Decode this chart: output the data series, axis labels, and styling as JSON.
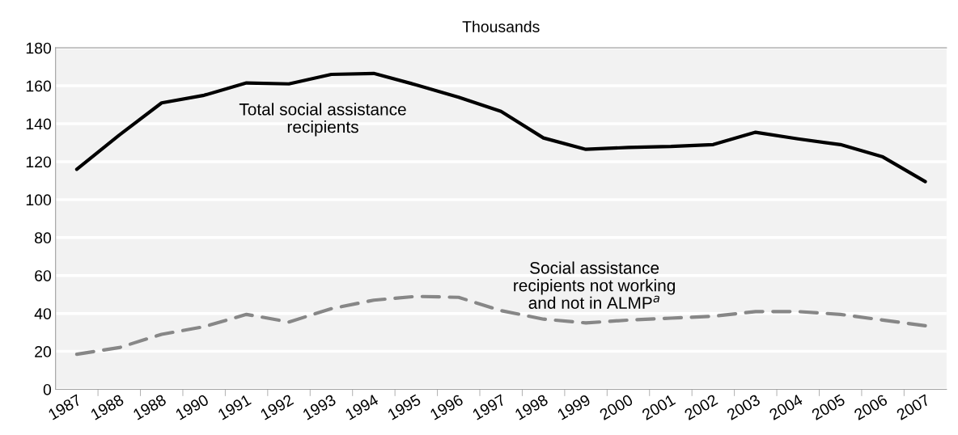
{
  "chart_data": {
    "type": "line",
    "ylabel": "Thousands",
    "categories": [
      "1987",
      "1988",
      "1988",
      "1990",
      "1991",
      "1992",
      "1993",
      "1994",
      "1995",
      "1996",
      "1997",
      "1998",
      "1999",
      "2000",
      "2001",
      "2002",
      "2003",
      "2004",
      "2005",
      "2006",
      "2007"
    ],
    "series": [
      {
        "name": "Total social assistance recipients",
        "color": "#000000",
        "line_style": "solid",
        "values": [
          116,
          134,
          151,
          155,
          161.5,
          161,
          166,
          166.5,
          160.5,
          154,
          146.5,
          132.5,
          126.5,
          127.5,
          128,
          129,
          135.5,
          132,
          129,
          122.5,
          109.5
        ]
      },
      {
        "name": "Social assistance recipients not working and not in ALMP$^{a}$",
        "color": "#878787",
        "line_style": "dashed",
        "values": [
          18.5,
          22,
          29,
          33,
          39.5,
          35.5,
          42.5,
          47,
          49,
          48.5,
          41.5,
          37,
          35,
          36.5,
          37.5,
          38.5,
          41,
          41,
          39.5,
          36.5,
          33.5
        ]
      }
    ],
    "ylim": [
      0,
      180
    ],
    "yticks": [
      0,
      20,
      40,
      60,
      80,
      100,
      120,
      140,
      160,
      180
    ],
    "grid": "y",
    "legend": false
  }
}
